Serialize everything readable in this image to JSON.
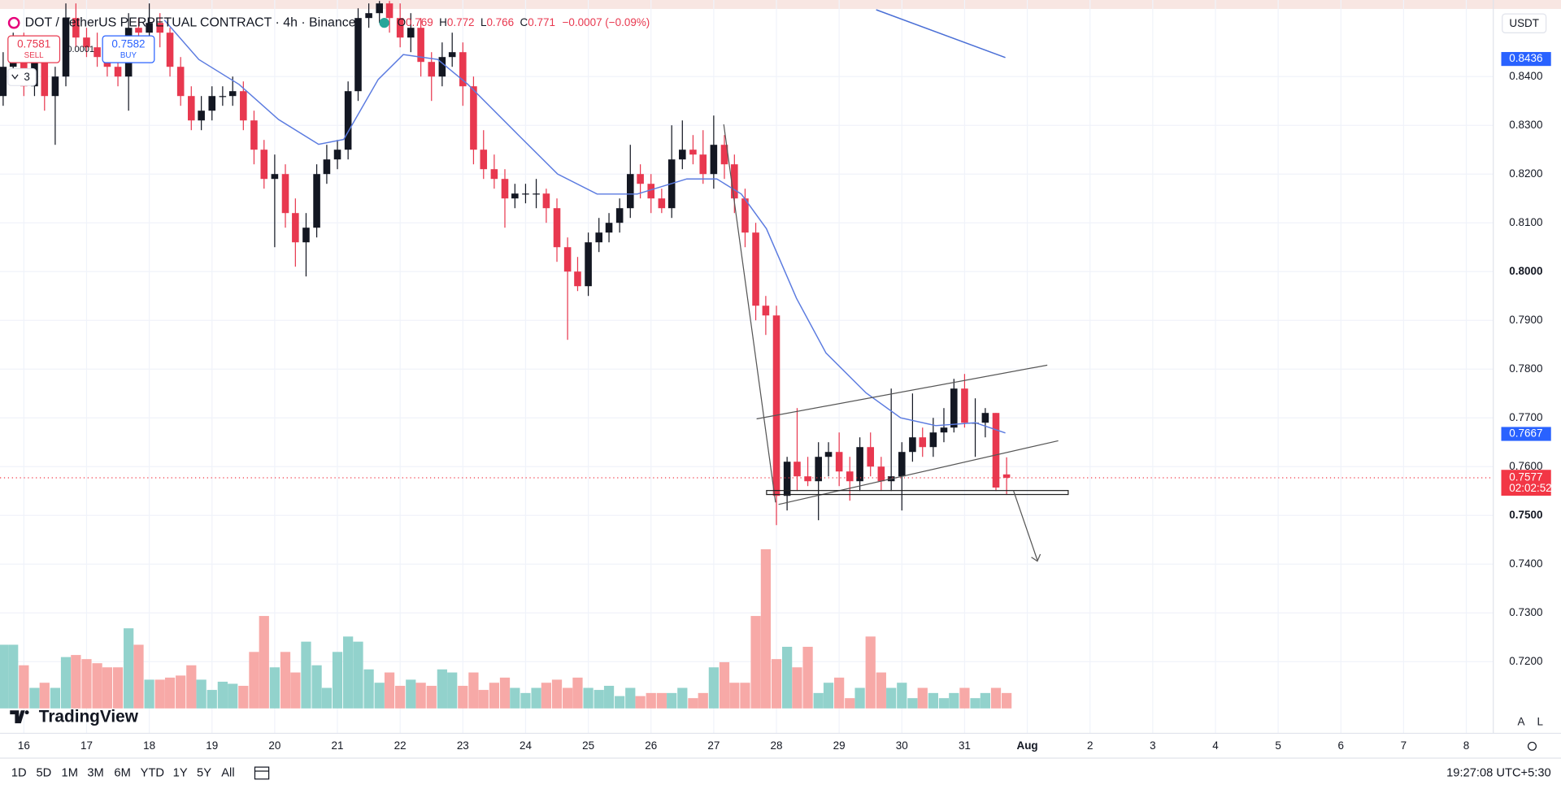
{
  "header": {
    "symbol": "DOT / TetherUS PERPETUAL CONTRACT · 4h · Binance",
    "ohlc_labels": [
      "O",
      "H",
      "L",
      "C"
    ],
    "change": "−0.0007 (−0.09%)",
    "sell": {
      "price": 0.7581,
      "label": "SELL"
    },
    "buy": {
      "price": 0.7582,
      "label": "BUY"
    },
    "spread": 0.0001,
    "indicator_count": 3,
    "currency": "USDT"
  },
  "toolbar": {
    "ranges": [
      "1D",
      "5D",
      "1M",
      "3M",
      "6M",
      "YTD",
      "1Y",
      "5Y",
      "All"
    ],
    "clock": "19:27:08 UTC+5:30",
    "scale_buttons": [
      "A",
      "L"
    ],
    "logo": "TradingView"
  },
  "chart_data": {
    "type": "candlestick",
    "xlim": [
      15.62,
      39.43
    ],
    "ylim": [
      0.7053,
      0.8557
    ],
    "yticks": [
      {
        "value": 0.72,
        "label": "0.7200"
      },
      {
        "value": 0.73,
        "label": "0.7300"
      },
      {
        "value": 0.74,
        "label": "0.7400"
      },
      {
        "value": 0.75,
        "label": "0.7500"
      },
      {
        "value": 0.76,
        "label": "0.7600"
      },
      {
        "value": 0.77,
        "label": "0.7700"
      },
      {
        "value": 0.78,
        "label": "0.7800"
      },
      {
        "value": 0.79,
        "label": "0.7900"
      },
      {
        "value": 0.8,
        "label": "0.8000"
      },
      {
        "value": 0.81,
        "label": "0.8100"
      },
      {
        "value": 0.82,
        "label": "0.8200"
      },
      {
        "value": 0.83,
        "label": "0.8300"
      },
      {
        "value": 0.84,
        "label": "0.8400"
      }
    ],
    "xticks": [
      16,
      17,
      18,
      19,
      20,
      21,
      22,
      23,
      24,
      25,
      26,
      27,
      28,
      29,
      30,
      31,
      {
        "value": 32,
        "label": "Aug"
      },
      {
        "value": 33,
        "label": "2"
      },
      {
        "value": 34,
        "label": "3"
      },
      {
        "value": 35,
        "label": "4"
      },
      {
        "value": 36,
        "label": "5"
      },
      {
        "value": 37,
        "label": "6"
      },
      {
        "value": 38,
        "label": "7"
      },
      {
        "value": 39,
        "label": "8"
      }
    ],
    "grid": true,
    "up_color": "#131722",
    "down_color": "#e8384f",
    "volume_up_color": "#92d2cc",
    "volume_down_color": "#f7a9a7",
    "x": [
      15.67,
      15.83,
      16,
      16.17,
      16.33,
      16.5,
      16.67,
      16.83,
      17,
      17.17,
      17.33,
      17.5,
      17.67,
      17.83,
      18,
      18.17,
      18.33,
      18.5,
      18.67,
      18.83,
      19,
      19.17,
      19.33,
      19.5,
      19.67,
      19.83,
      20,
      20.17,
      20.33,
      20.5,
      20.67,
      20.83,
      21,
      21.17,
      21.33,
      21.5,
      21.67,
      21.83,
      22,
      22.17,
      22.33,
      22.5,
      22.67,
      22.83,
      23,
      23.17,
      23.33,
      23.5,
      23.67,
      23.83,
      24,
      24.17,
      24.33,
      24.5,
      24.67,
      24.83,
      25,
      25.17,
      25.33,
      25.5,
      25.67,
      25.83,
      26,
      26.17,
      26.33,
      26.5,
      26.67,
      26.83,
      27,
      27.17,
      27.33,
      27.5,
      27.67,
      27.83,
      28,
      28.17,
      28.33,
      28.5,
      28.67,
      28.83,
      29,
      29.17,
      29.33,
      29.5,
      29.67,
      29.83,
      30,
      30.17,
      30.33,
      30.5,
      30.67,
      30.83,
      31,
      31.17,
      31.33,
      31.5,
      31.67
    ],
    "candles": [
      [
        0.836,
        0.845,
        0.834,
        0.842
      ],
      [
        0.842,
        0.849,
        0.84,
        0.847
      ],
      [
        0.847,
        0.849,
        0.836,
        0.838
      ],
      [
        0.838,
        0.847,
        0.836,
        0.845
      ],
      [
        0.845,
        0.846,
        0.833,
        0.836
      ],
      [
        0.836,
        0.842,
        0.826,
        0.84
      ],
      [
        0.84,
        0.855,
        0.838,
        0.852
      ],
      [
        0.852,
        0.855,
        0.846,
        0.848
      ],
      [
        0.848,
        0.85,
        0.844,
        0.846
      ],
      [
        0.846,
        0.849,
        0.842,
        0.844
      ],
      [
        0.844,
        0.846,
        0.84,
        0.842
      ],
      [
        0.842,
        0.844,
        0.838,
        0.84
      ],
      [
        0.84,
        0.853,
        0.833,
        0.85
      ],
      [
        0.85,
        0.852,
        0.847,
        0.849
      ],
      [
        0.849,
        0.855,
        0.847,
        0.851
      ],
      [
        0.851,
        0.853,
        0.846,
        0.849
      ],
      [
        0.849,
        0.85,
        0.84,
        0.842
      ],
      [
        0.842,
        0.844,
        0.834,
        0.836
      ],
      [
        0.836,
        0.838,
        0.829,
        0.831
      ],
      [
        0.831,
        0.836,
        0.829,
        0.833
      ],
      [
        0.833,
        0.838,
        0.831,
        0.836
      ],
      [
        0.836,
        0.838,
        0.834,
        0.836
      ],
      [
        0.836,
        0.84,
        0.834,
        0.837
      ],
      [
        0.837,
        0.839,
        0.829,
        0.831
      ],
      [
        0.831,
        0.833,
        0.822,
        0.825
      ],
      [
        0.825,
        0.827,
        0.817,
        0.819
      ],
      [
        0.819,
        0.824,
        0.805,
        0.82
      ],
      [
        0.82,
        0.822,
        0.809,
        0.812
      ],
      [
        0.812,
        0.815,
        0.801,
        0.806
      ],
      [
        0.806,
        0.812,
        0.799,
        0.809
      ],
      [
        0.809,
        0.822,
        0.807,
        0.82
      ],
      [
        0.82,
        0.826,
        0.818,
        0.823
      ],
      [
        0.823,
        0.827,
        0.821,
        0.825
      ],
      [
        0.825,
        0.839,
        0.823,
        0.837
      ],
      [
        0.837,
        0.854,
        0.835,
        0.852
      ],
      [
        0.852,
        0.855,
        0.85,
        0.853
      ],
      [
        0.853,
        0.8555,
        0.851,
        0.855
      ],
      [
        0.855,
        0.8555,
        0.849,
        0.852
      ],
      [
        0.852,
        0.855,
        0.846,
        0.848
      ],
      [
        0.848,
        0.853,
        0.845,
        0.85
      ],
      [
        0.85,
        0.852,
        0.84,
        0.843
      ],
      [
        0.843,
        0.845,
        0.835,
        0.84
      ],
      [
        0.84,
        0.847,
        0.838,
        0.844
      ],
      [
        0.844,
        0.849,
        0.842,
        0.845
      ],
      [
        0.845,
        0.847,
        0.834,
        0.838
      ],
      [
        0.838,
        0.84,
        0.822,
        0.825
      ],
      [
        0.825,
        0.829,
        0.819,
        0.821
      ],
      [
        0.821,
        0.824,
        0.817,
        0.819
      ],
      [
        0.819,
        0.821,
        0.809,
        0.815
      ],
      [
        0.815,
        0.818,
        0.813,
        0.816
      ],
      [
        0.816,
        0.818,
        0.814,
        0.816
      ],
      [
        0.816,
        0.819,
        0.813,
        0.816
      ],
      [
        0.816,
        0.817,
        0.81,
        0.813
      ],
      [
        0.813,
        0.815,
        0.802,
        0.805
      ],
      [
        0.805,
        0.807,
        0.786,
        0.8
      ],
      [
        0.8,
        0.803,
        0.796,
        0.797
      ],
      [
        0.797,
        0.808,
        0.795,
        0.806
      ],
      [
        0.806,
        0.811,
        0.804,
        0.808
      ],
      [
        0.808,
        0.812,
        0.806,
        0.81
      ],
      [
        0.81,
        0.815,
        0.808,
        0.813
      ],
      [
        0.813,
        0.826,
        0.811,
        0.82
      ],
      [
        0.82,
        0.822,
        0.815,
        0.818
      ],
      [
        0.818,
        0.82,
        0.812,
        0.815
      ],
      [
        0.815,
        0.817,
        0.812,
        0.813
      ],
      [
        0.813,
        0.83,
        0.811,
        0.823
      ],
      [
        0.823,
        0.831,
        0.821,
        0.825
      ],
      [
        0.825,
        0.828,
        0.822,
        0.824
      ],
      [
        0.824,
        0.829,
        0.818,
        0.82
      ],
      [
        0.82,
        0.832,
        0.817,
        0.826
      ],
      [
        0.826,
        0.828,
        0.819,
        0.822
      ],
      [
        0.822,
        0.824,
        0.812,
        0.815
      ],
      [
        0.815,
        0.817,
        0.805,
        0.808
      ],
      [
        0.808,
        0.81,
        0.79,
        0.793
      ],
      [
        0.793,
        0.795,
        0.787,
        0.791
      ],
      [
        0.791,
        0.793,
        0.748,
        0.754
      ],
      [
        0.754,
        0.762,
        0.751,
        0.761
      ],
      [
        0.761,
        0.772,
        0.755,
        0.758
      ],
      [
        0.758,
        0.762,
        0.756,
        0.757
      ],
      [
        0.757,
        0.765,
        0.749,
        0.762
      ],
      [
        0.762,
        0.765,
        0.758,
        0.763
      ],
      [
        0.763,
        0.767,
        0.756,
        0.759
      ],
      [
        0.759,
        0.762,
        0.753,
        0.757
      ],
      [
        0.757,
        0.766,
        0.755,
        0.764
      ],
      [
        0.764,
        0.767,
        0.758,
        0.76
      ],
      [
        0.76,
        0.762,
        0.755,
        0.757
      ],
      [
        0.757,
        0.776,
        0.755,
        0.758
      ],
      [
        0.758,
        0.765,
        0.751,
        0.763
      ],
      [
        0.763,
        0.775,
        0.761,
        0.766
      ],
      [
        0.766,
        0.768,
        0.762,
        0.764
      ],
      [
        0.764,
        0.77,
        0.762,
        0.767
      ],
      [
        0.767,
        0.772,
        0.765,
        0.768
      ],
      [
        0.768,
        0.778,
        0.767,
        0.776
      ],
      [
        0.776,
        0.779,
        0.768,
        0.769
      ],
      [
        0.769,
        0.774,
        0.762,
        0.769
      ],
      [
        0.769,
        0.772,
        0.766,
        0.771
      ],
      [
        0.771,
        0.771,
        0.755,
        0.7557
      ],
      [
        0.7584,
        0.7619,
        0.7542,
        0.7577
      ]
    ],
    "volume": [
      62,
      62,
      42,
      20,
      25,
      20,
      50,
      52,
      48,
      44,
      40,
      40,
      78,
      62,
      28,
      28,
      30,
      32,
      42,
      28,
      18,
      26,
      24,
      22,
      55,
      90,
      40,
      55,
      35,
      65,
      42,
      20,
      55,
      70,
      65,
      38,
      25,
      35,
      22,
      28,
      25,
      22,
      38,
      35,
      22,
      35,
      18,
      25,
      30,
      20,
      15,
      20,
      25,
      28,
      20,
      30,
      20,
      18,
      22,
      12,
      20,
      12,
      15,
      15,
      15,
      20,
      10,
      15,
      40,
      45,
      25,
      25,
      90,
      155,
      48,
      60,
      40,
      60,
      15,
      25,
      30,
      10,
      20,
      70,
      35,
      20,
      25,
      10,
      20,
      15,
      10,
      15,
      20,
      10,
      15,
      20,
      15
    ],
    "moving_averages": [
      {
        "color": "#5b7be0",
        "x": [
          18.24,
          18.79,
          19.43,
          20.06,
          20.7,
          21.1,
          21.65,
          22.05,
          22.6,
          23.08,
          23.87,
          24.51,
          25.14,
          25.78,
          26.57,
          27.05,
          27.44,
          27.84,
          28.32,
          28.79,
          29.43,
          29.98,
          30.54,
          31.17,
          31.65
        ],
        "values": [
          0.8516,
          0.8435,
          0.8384,
          0.8312,
          0.8261,
          0.8271,
          0.8394,
          0.8445,
          0.8435,
          0.8384,
          0.8282,
          0.82,
          0.8159,
          0.8159,
          0.819,
          0.819,
          0.8159,
          0.8088,
          0.7945,
          0.7833,
          0.7751,
          0.77,
          0.7684,
          0.769,
          0.7669
        ]
      },
      {
        "color": "#4a6fd6",
        "x": [
          29.59,
          31.65
        ],
        "values": [
          0.8537,
          0.8439
        ]
      }
    ],
    "price_labels": [
      {
        "value": 0.8436,
        "color": "#2962ff"
      },
      {
        "value": 0.7667,
        "color": "#2962ff"
      },
      {
        "value": 0.7577,
        "color": "#f23645",
        "countdown": "02:02:52"
      }
    ]
  }
}
